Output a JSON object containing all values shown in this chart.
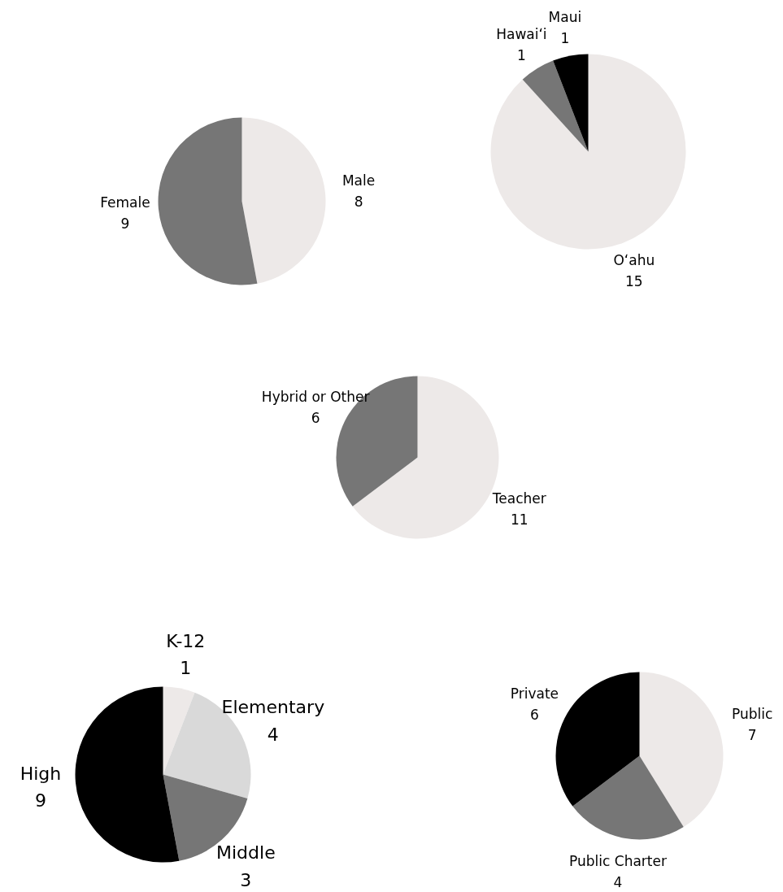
{
  "chart_data": [
    {
      "type": "pie",
      "categories": [
        "Male",
        "Female"
      ],
      "values": [
        8,
        9
      ],
      "colors": [
        "#ede9e8",
        "#767676"
      ],
      "data_labels": true
    },
    {
      "type": "pie",
      "categories": [
        "Oʻahu",
        "Hawaiʻi",
        "Maui"
      ],
      "values": [
        15,
        1,
        1
      ],
      "colors": [
        "#ede9e8",
        "#767676",
        "#000000"
      ],
      "data_labels": true
    },
    {
      "type": "pie",
      "categories": [
        "Teacher",
        "Hybrid or Other"
      ],
      "values": [
        11,
        6
      ],
      "colors": [
        "#ede9e8",
        "#767676"
      ],
      "data_labels": true
    },
    {
      "type": "pie",
      "categories": [
        "K-12",
        "Elementary",
        "Middle",
        "High"
      ],
      "values": [
        1,
        4,
        3,
        9
      ],
      "colors": [
        "#ede9e8",
        "#d9d9d9",
        "#767676",
        "#000000"
      ],
      "data_labels": true
    },
    {
      "type": "pie",
      "categories": [
        "Public",
        "Public Charter",
        "Private"
      ],
      "values": [
        7,
        4,
        6
      ],
      "colors": [
        "#ede9e8",
        "#767676",
        "#000000"
      ],
      "data_labels": true
    }
  ]
}
